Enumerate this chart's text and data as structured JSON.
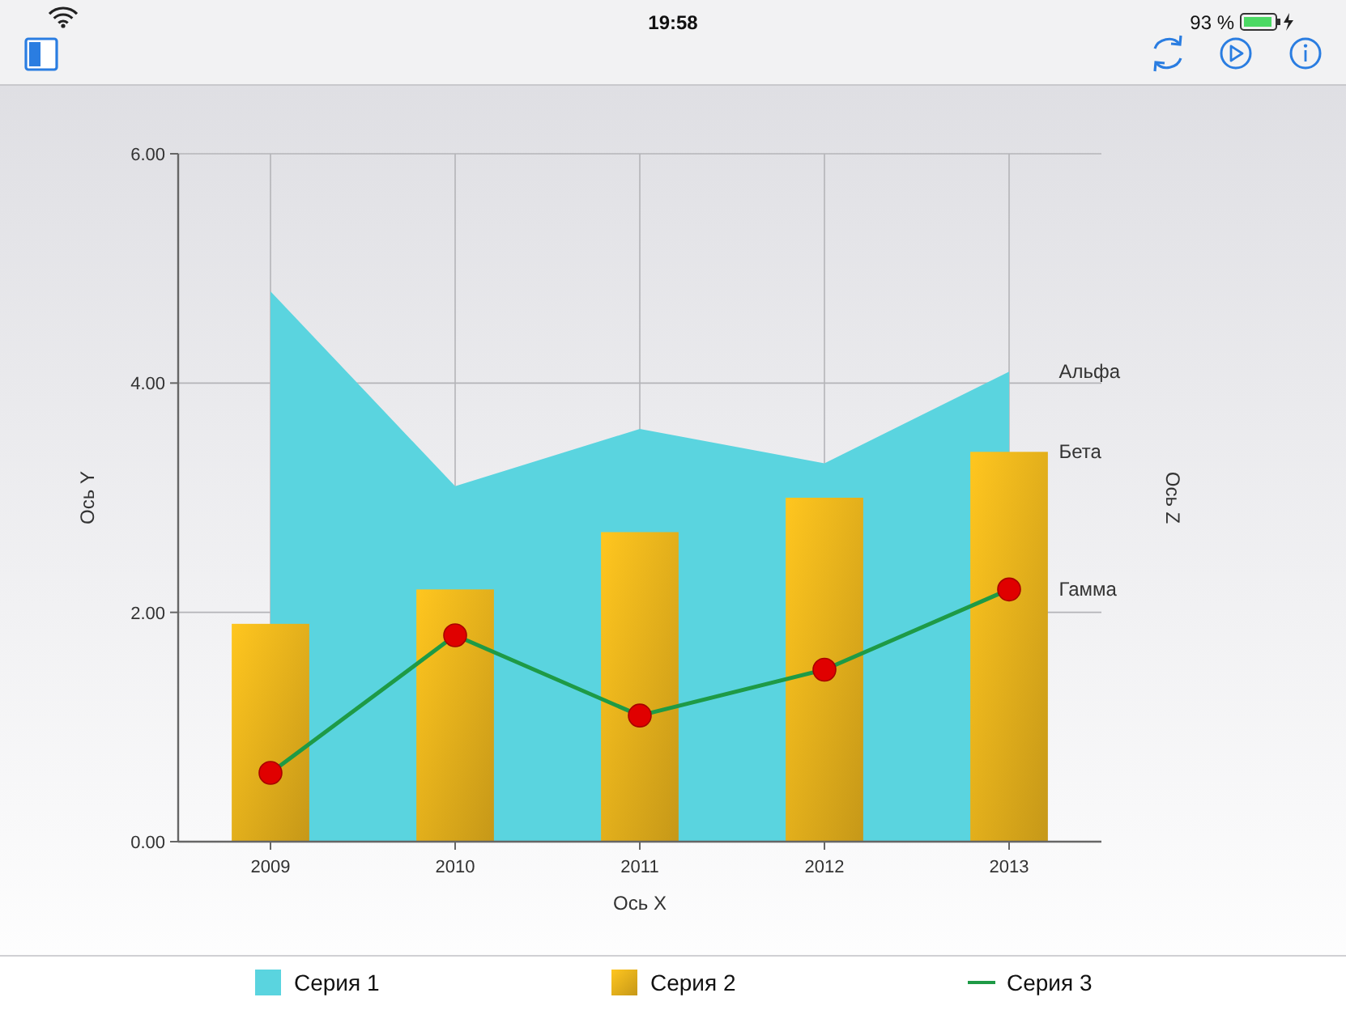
{
  "chart_data": {
    "type": "bar",
    "xlabel": "Ось X",
    "ylabel": "Ось Y",
    "categories": [
      "2009",
      "2010",
      "2011",
      "2012",
      "2013"
    ],
    "series": [
      {
        "name": "Серия 1",
        "type": "area",
        "color": "#5ad4df",
        "values": [
          4.8,
          3.1,
          3.6,
          3.3,
          4.1
        ]
      },
      {
        "name": "Серия 2",
        "color": "#e8b21c",
        "values": [
          1.9,
          2.2,
          2.7,
          3.0,
          3.4
        ]
      },
      {
        "name": "Серия 3",
        "type": "line",
        "marker": "circle",
        "color": "#1e9a46",
        "colors": [
          "#e00000",
          "#e00000",
          "#e00000",
          "#e00000",
          "#e00000"
        ],
        "values": [
          0.6,
          1.8,
          1.1,
          1.5,
          2.2
        ]
      }
    ],
    "ylim": [
      0,
      6
    ],
    "yticks": [
      {
        "value": 0,
        "label": "0.00"
      },
      {
        "value": 2,
        "label": "2.00"
      },
      {
        "value": 4,
        "label": "4.00"
      },
      {
        "value": 6,
        "label": "6.00"
      }
    ],
    "grid": true,
    "legend": "bottom",
    "line_style": "solid",
    "annotations": [
      "19:58",
      "93 %",
      "Ось Z",
      {
        "text": "Альфа",
        "x": "2013",
        "y": 4.1
      },
      {
        "text": "Бета",
        "x": "2013",
        "y": 3.4
      },
      {
        "text": "Гамма",
        "x": "2013",
        "y": 2.2
      }
    ]
  }
}
